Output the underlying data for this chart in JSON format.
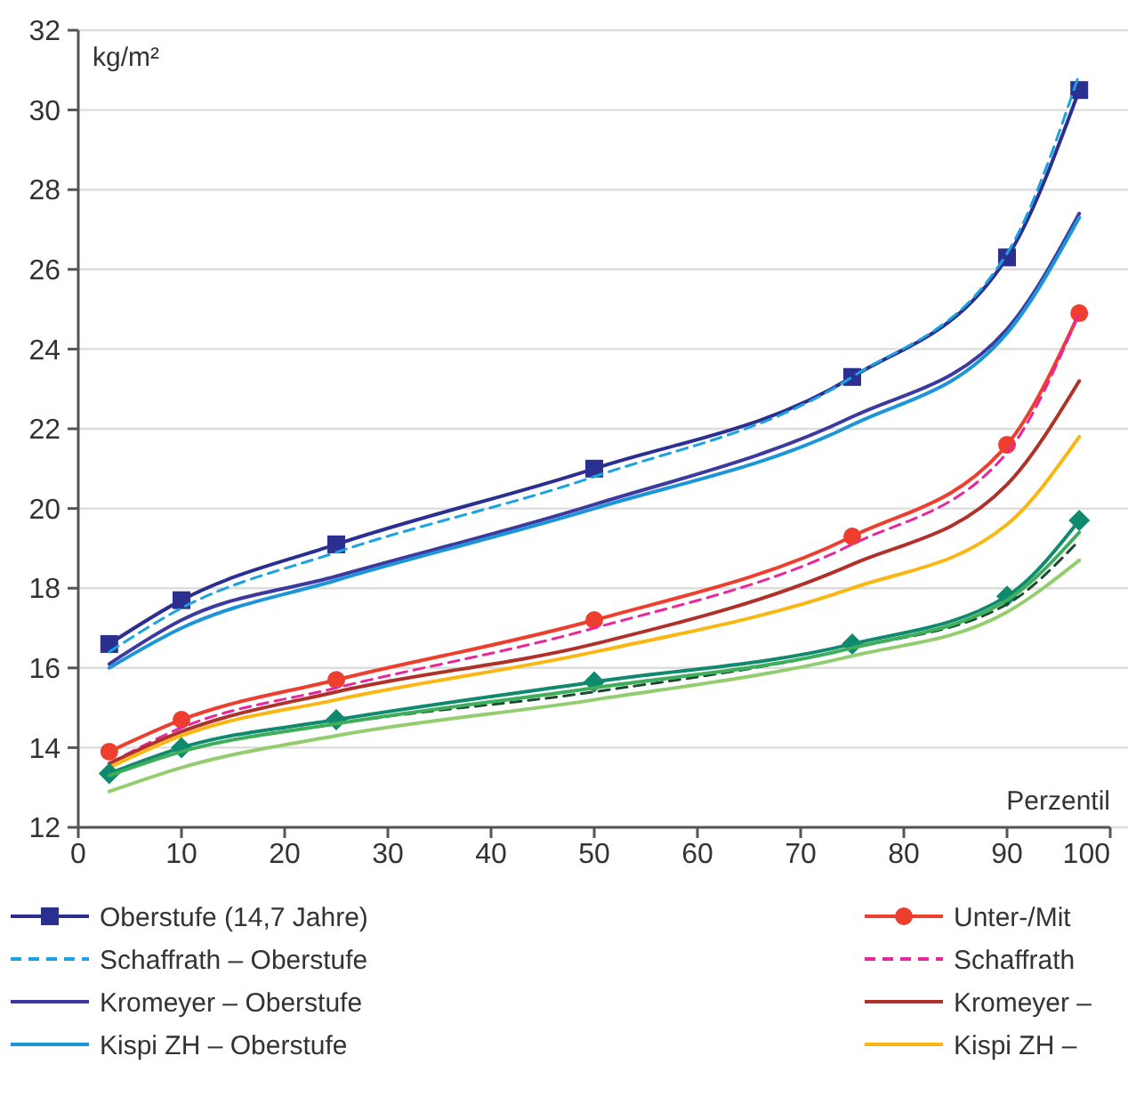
{
  "chart_data": {
    "type": "line",
    "ylabel": "kg/m²",
    "xlabel": "Perzentil",
    "x": [
      3,
      10,
      25,
      50,
      75,
      90,
      97
    ],
    "xlim": [
      0,
      100
    ],
    "xticks": [
      0,
      10,
      20,
      30,
      40,
      50,
      60,
      70,
      80,
      90,
      100
    ],
    "ylim": [
      12,
      32
    ],
    "yticks": [
      12,
      14,
      16,
      18,
      20,
      22,
      24,
      26,
      28,
      30,
      32
    ],
    "grid": "y",
    "legend": "bottom",
    "series": [
      {
        "name": "Oberstufe (14,7 Jahre)",
        "color": "#2b2f8f",
        "marker": "square",
        "line_style": "solid",
        "values": [
          16.6,
          17.7,
          19.1,
          21.0,
          23.3,
          26.3,
          30.5
        ]
      },
      {
        "name": "Schaffrath – Oberstufe",
        "color": "#1aa3e0",
        "marker": "none",
        "line_style": "dashed",
        "values": [
          16.4,
          17.5,
          18.9,
          20.8,
          23.3,
          26.4,
          30.9
        ]
      },
      {
        "name": "Kromeyer – Oberstufe",
        "color": "#3c3a9e",
        "marker": "none",
        "line_style": "solid",
        "values": [
          16.1,
          17.2,
          18.3,
          20.1,
          22.3,
          24.5,
          27.4
        ]
      },
      {
        "name": "Kispi ZH – Oberstufe",
        "color": "#1b95d8",
        "marker": "none",
        "line_style": "solid",
        "values": [
          16.0,
          17.0,
          18.2,
          20.0,
          22.1,
          24.4,
          27.3
        ]
      },
      {
        "name": "Unter-/Mit",
        "color": "#ee3e2e",
        "marker": "circle",
        "line_style": "solid",
        "values": [
          13.9,
          14.7,
          15.7,
          17.2,
          19.3,
          21.6,
          24.9
        ]
      },
      {
        "name": "Schaffrath",
        "color": "#e8289a",
        "marker": "none",
        "line_style": "dashed",
        "values": [
          13.6,
          14.5,
          15.5,
          17.0,
          19.1,
          21.4,
          24.9
        ]
      },
      {
        "name": "Kromeyer –",
        "color": "#b0302a",
        "marker": "none",
        "line_style": "solid",
        "values": [
          13.6,
          14.4,
          15.4,
          16.6,
          18.6,
          20.6,
          23.2
        ]
      },
      {
        "name": "Kispi ZH –",
        "color": "#fbb612",
        "marker": "none",
        "line_style": "solid",
        "values": [
          13.5,
          14.3,
          15.2,
          16.4,
          18.0,
          19.6,
          21.8
        ]
      },
      {
        "color": "#0f8a6e",
        "marker": "diamond",
        "line_style": "solid",
        "values": [
          13.35,
          14.0,
          14.7,
          15.65,
          16.6,
          17.8,
          19.7
        ]
      },
      {
        "color": "#1e4a32",
        "marker": "none",
        "line_style": "dashed",
        "values": [
          13.3,
          13.9,
          14.6,
          15.4,
          16.5,
          17.6,
          19.2
        ]
      },
      {
        "color": "#3fae5a",
        "marker": "none",
        "line_style": "solid",
        "values": [
          13.3,
          13.9,
          14.6,
          15.5,
          16.5,
          17.7,
          19.4
        ]
      },
      {
        "color": "#93cd6f",
        "marker": "none",
        "line_style": "solid",
        "values": [
          12.9,
          13.5,
          14.3,
          15.2,
          16.3,
          17.4,
          18.7
        ]
      }
    ]
  }
}
